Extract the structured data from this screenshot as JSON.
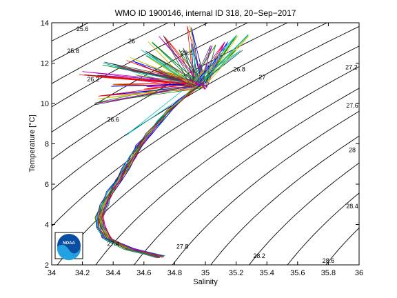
{
  "chart_data": {
    "type": "line",
    "title": "WMO ID 1900146, internal ID 318, 20−Sep−2017",
    "xlabel": "Salinity",
    "ylabel": "Temperature [°C]",
    "xlim": [
      34,
      36
    ],
    "ylim": [
      2,
      14
    ],
    "xticks": [
      "34",
      "34.2",
      "34.4",
      "34.6",
      "34.8",
      "35",
      "35.2",
      "35.4",
      "35.6",
      "35.8",
      "36"
    ],
    "yticks": [
      "2",
      "4",
      "6",
      "8",
      "10",
      "12",
      "14"
    ],
    "grid": false,
    "legend": "none",
    "density_isolines": {
      "levels": [
        25.6,
        25.8,
        26,
        26.2,
        26.4,
        26.6,
        26.8,
        27,
        27.2,
        27.4,
        27.6,
        27.8,
        28,
        28.2,
        28.4,
        28.6
      ],
      "labels": [
        {
          "text": "25.6",
          "s": 34.2,
          "t": 13.7
        },
        {
          "text": "25.8",
          "s": 34.14,
          "t": 12.6
        },
        {
          "text": "26",
          "s": 34.52,
          "t": 13.1
        },
        {
          "text": "26.2",
          "s": 34.27,
          "t": 11.2
        },
        {
          "text": "26.4",
          "s": 34.88,
          "t": 12.5
        },
        {
          "text": "26.6",
          "s": 34.4,
          "t": 9.2
        },
        {
          "text": "26.8",
          "s": 35.22,
          "t": 11.7
        },
        {
          "text": "27",
          "s": 35.37,
          "t": 11.3
        },
        {
          "text": "27.2",
          "s": 35.95,
          "t": 11.8
        },
        {
          "text": "27.4",
          "s": 34.4,
          "t": 3.05
        },
        {
          "text": "27.6",
          "s": 35.96,
          "t": 9.9
        },
        {
          "text": "27.8",
          "s": 34.85,
          "t": 2.9
        },
        {
          "text": "28",
          "s": 36.05,
          "t": 7.7
        },
        {
          "text": "28.2",
          "s": 35.35,
          "t": 2.45
        },
        {
          "text": "28.4",
          "s": 36.13,
          "t": 4.9
        },
        {
          "text": "28.6",
          "s": 35.8,
          "t": 2.1
        }
      ]
    },
    "profile_spine": [
      {
        "s": 34.7,
        "t": 2.4
      },
      {
        "s": 34.5,
        "t": 2.8
      },
      {
        "s": 34.36,
        "t": 3.3
      },
      {
        "s": 34.32,
        "t": 3.9
      },
      {
        "s": 34.31,
        "t": 4.4
      },
      {
        "s": 34.34,
        "t": 5.0
      },
      {
        "s": 34.38,
        "t": 5.6
      },
      {
        "s": 34.43,
        "t": 6.2
      },
      {
        "s": 34.48,
        "t": 6.8
      },
      {
        "s": 34.53,
        "t": 7.4
      },
      {
        "s": 34.57,
        "t": 7.9
      },
      {
        "s": 34.63,
        "t": 8.5
      },
      {
        "s": 34.7,
        "t": 9.1
      },
      {
        "s": 34.77,
        "t": 9.7
      },
      {
        "s": 34.84,
        "t": 10.2
      },
      {
        "s": 34.9,
        "t": 10.6
      },
      {
        "s": 34.96,
        "t": 10.9
      }
    ],
    "surface_excursions": [
      {
        "s": 35.15,
        "t": 13.1
      },
      {
        "s": 34.3,
        "t": 10.3
      },
      {
        "s": 34.55,
        "t": 11.4
      },
      {
        "s": 35.3,
        "t": 13.4
      },
      {
        "s": 34.6,
        "t": 12.6
      },
      {
        "s": 34.28,
        "t": 10.0
      },
      {
        "s": 34.45,
        "t": 11.8
      },
      {
        "s": 34.6,
        "t": 10.8
      },
      {
        "s": 34.9,
        "t": 13.8
      },
      {
        "s": 35.1,
        "t": 12.2
      },
      {
        "s": 34.65,
        "t": 13.0
      },
      {
        "s": 34.85,
        "t": 12.7
      },
      {
        "s": 35.05,
        "t": 12.9
      },
      {
        "s": 34.3,
        "t": 11.3
      },
      {
        "s": 34.75,
        "t": 11.6
      },
      {
        "s": 34.4,
        "t": 10.9
      },
      {
        "s": 34.9,
        "t": 12.9
      },
      {
        "s": 35.2,
        "t": 13.3
      },
      {
        "s": 35.22,
        "t": 12.6
      },
      {
        "s": 34.68,
        "t": 11.7
      },
      {
        "s": 34.2,
        "t": 11.5
      },
      {
        "s": 34.8,
        "t": 11.3
      },
      {
        "s": 34.5,
        "t": 12.2
      },
      {
        "s": 35.0,
        "t": 11.8
      },
      {
        "s": 34.62,
        "t": 12.4
      },
      {
        "s": 34.35,
        "t": 12.0
      },
      {
        "s": 34.95,
        "t": 12.0
      },
      {
        "s": 34.72,
        "t": 13.3
      }
    ],
    "deep_hook": {
      "s": 34.48,
      "t": 8.4
    },
    "series_colors": [
      "#0000ff",
      "#008000",
      "#ff0000",
      "#00bfbf",
      "#bf00bf",
      "#bfbf00",
      "#404040"
    ],
    "profile_count": 28,
    "logo": {
      "text": "NOAA"
    }
  }
}
